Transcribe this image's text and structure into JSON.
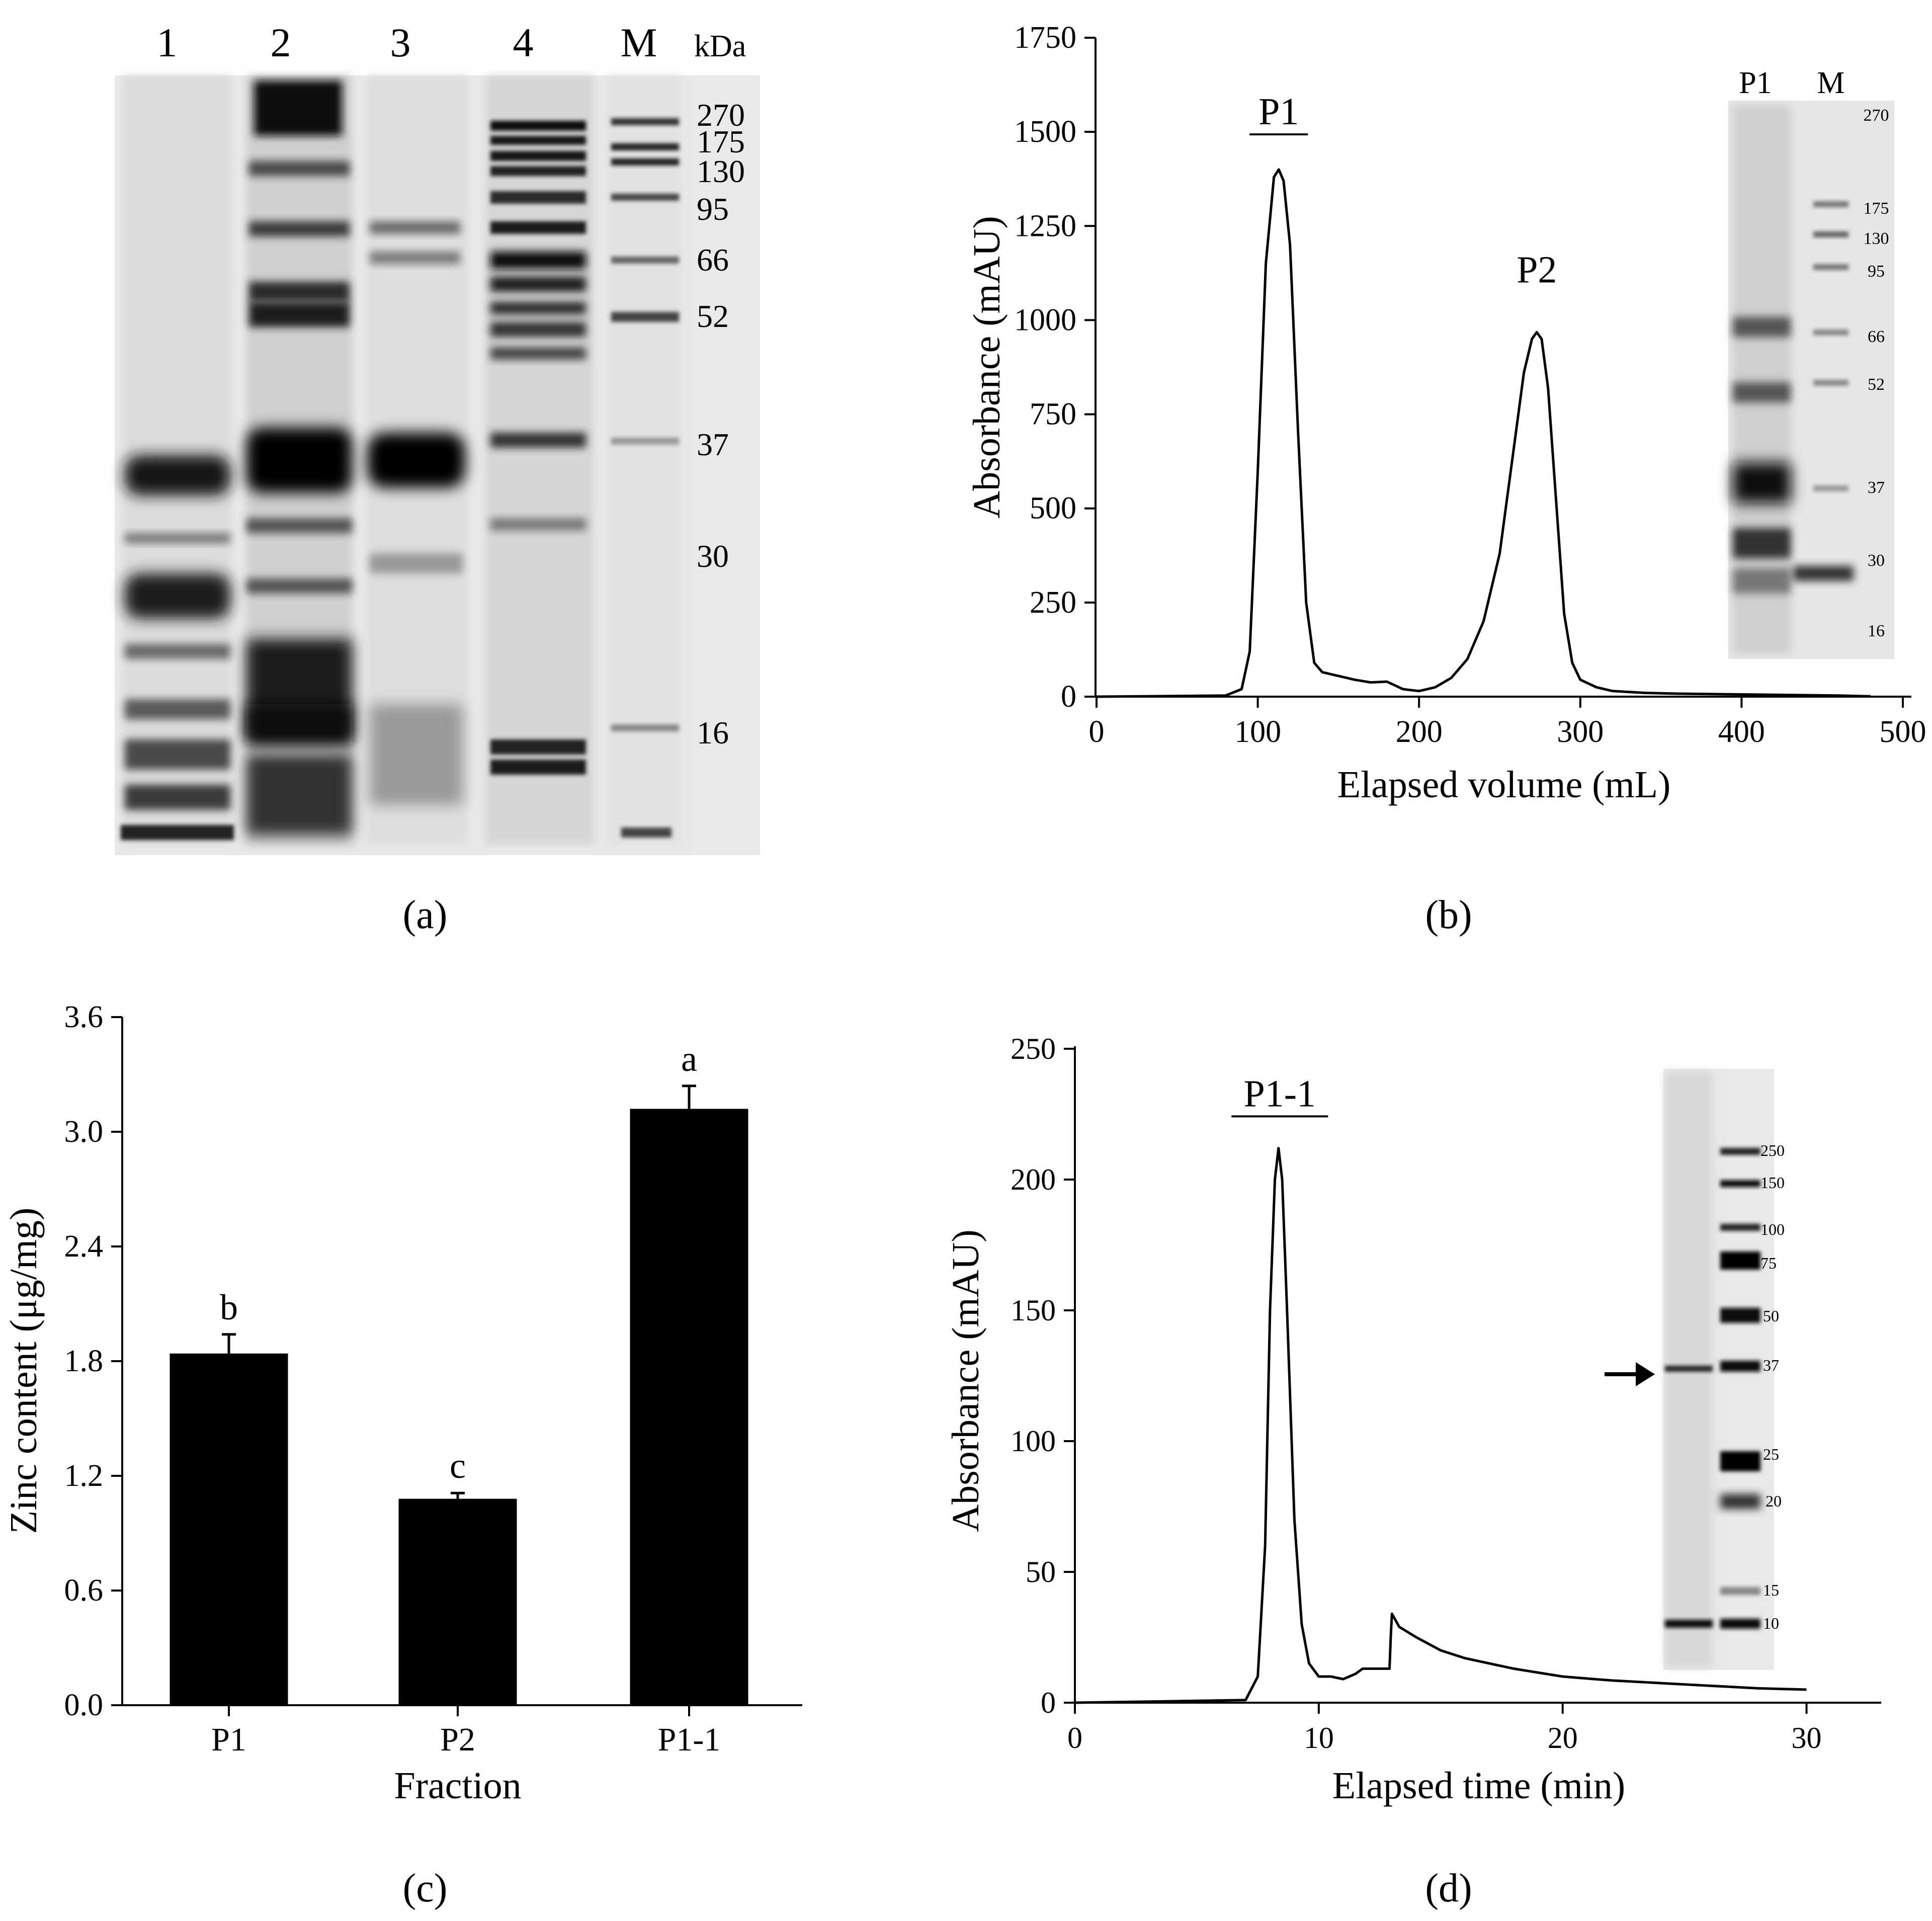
{
  "panel_labels": [
    "(a)",
    "(b)",
    "(c)",
    "(d)"
  ],
  "gel_a": {
    "lane_labels": [
      "1",
      "2",
      "3",
      "4",
      "M"
    ],
    "unit": "kDa",
    "marker_labels": [
      "270",
      "175",
      "130",
      "95",
      "66",
      "52",
      "37",
      "30",
      "16"
    ]
  },
  "chart_data": [
    {
      "panel": "b",
      "type": "line",
      "xlabel": "Elapsed volume (mL)",
      "ylabel": "Absorbance (mAU)",
      "xlim": [
        0,
        500
      ],
      "ylim": [
        0,
        1750
      ],
      "xticks": [
        0,
        100,
        200,
        300,
        400,
        500
      ],
      "yticks": [
        0,
        250,
        500,
        750,
        1000,
        1250,
        1500,
        1750
      ],
      "x": [
        0,
        80,
        90,
        95,
        100,
        105,
        110,
        113,
        116,
        120,
        125,
        130,
        135,
        140,
        150,
        160,
        170,
        180,
        185,
        190,
        200,
        210,
        220,
        230,
        240,
        250,
        260,
        265,
        270,
        273,
        276,
        280,
        285,
        290,
        295,
        300,
        310,
        320,
        340,
        360,
        380,
        400,
        420,
        440,
        460,
        480
      ],
      "y": [
        0,
        3,
        20,
        120,
        600,
        1150,
        1380,
        1400,
        1370,
        1200,
        700,
        250,
        90,
        65,
        55,
        45,
        38,
        40,
        30,
        20,
        15,
        25,
        50,
        100,
        200,
        380,
        700,
        860,
        950,
        968,
        950,
        820,
        520,
        220,
        90,
        45,
        25,
        15,
        10,
        8,
        7,
        6,
        5,
        4,
        3,
        1
      ],
      "annotations": [
        {
          "text": "P1",
          "x": 113,
          "y": 1520,
          "underline": true
        },
        {
          "text": "P2",
          "x": 273,
          "y": 1100,
          "underline": false
        }
      ],
      "inset": {
        "lane_labels": [
          "P1",
          "M"
        ],
        "marker_labels": [
          "270",
          "175",
          "130",
          "95",
          "66",
          "52",
          "37",
          "30",
          "16"
        ]
      }
    },
    {
      "panel": "c",
      "type": "bar",
      "xlabel": "Fraction",
      "ylabel": "Zinc content (μg/mg)",
      "ylim": [
        0,
        3.6
      ],
      "yticks": [
        "0.0",
        "0.6",
        "1.2",
        "1.8",
        "2.4",
        "3.0",
        "3.6"
      ],
      "categories": [
        "P1",
        "P2",
        "P1-1"
      ],
      "values": [
        1.84,
        1.08,
        3.12
      ],
      "errors": [
        0.1,
        0.03,
        0.12
      ],
      "significance_letters": [
        "b",
        "c",
        "a"
      ]
    },
    {
      "panel": "d",
      "type": "line",
      "xlabel": "Elapsed time (min)",
      "ylabel": "Absorbance (mAU)",
      "xlim": [
        0,
        33
      ],
      "ylim": [
        0,
        250
      ],
      "xticks": [
        0,
        10,
        20,
        30
      ],
      "yticks": [
        0,
        50,
        100,
        150,
        200,
        250
      ],
      "x": [
        0,
        7,
        7.5,
        7.8,
        8.0,
        8.2,
        8.35,
        8.5,
        8.7,
        9.0,
        9.3,
        9.6,
        10.0,
        10.5,
        11.0,
        11.5,
        11.8,
        12.0,
        12.9,
        12.95,
        13.0,
        13.3,
        14,
        15,
        16,
        18,
        20,
        22,
        24,
        26,
        28,
        30
      ],
      "y": [
        0,
        1,
        10,
        60,
        150,
        200,
        212,
        200,
        150,
        70,
        30,
        15,
        10,
        10,
        9,
        11,
        13,
        13,
        13,
        25,
        34,
        29,
        25,
        20,
        17,
        13,
        10,
        8.5,
        7.5,
        6.5,
        5.5,
        5
      ],
      "annotations": [
        {
          "text": "P1-1",
          "x": 8.4,
          "y": 228,
          "underline": true
        }
      ],
      "inset": {
        "marker_labels": [
          "250",
          "150",
          "100",
          "75",
          "50",
          "37",
          "25",
          "20",
          "15",
          "10"
        ]
      }
    }
  ]
}
